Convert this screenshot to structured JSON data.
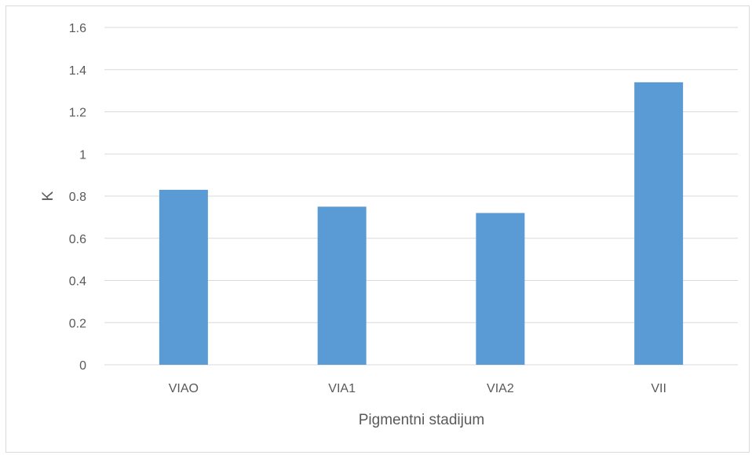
{
  "chart_data": {
    "type": "bar",
    "title": "",
    "xlabel": "Pigmentni stadijum",
    "ylabel": "K",
    "categories": [
      "VIAO",
      "VIA1",
      "VIA2",
      "VII"
    ],
    "series": [
      {
        "values": [
          0.83,
          0.75,
          0.72,
          1.34
        ]
      }
    ],
    "ylim": [
      0,
      1.6
    ],
    "yticks": [
      "0",
      "0.2",
      "0.4",
      "0.6",
      "0.8",
      "1",
      "1.2",
      "1.4",
      "1.6"
    ],
    "grid": true,
    "legend": "none",
    "colors": {
      "bar": "#5b9bd5",
      "grid": "#d9d9d9",
      "text": "#595959"
    }
  }
}
